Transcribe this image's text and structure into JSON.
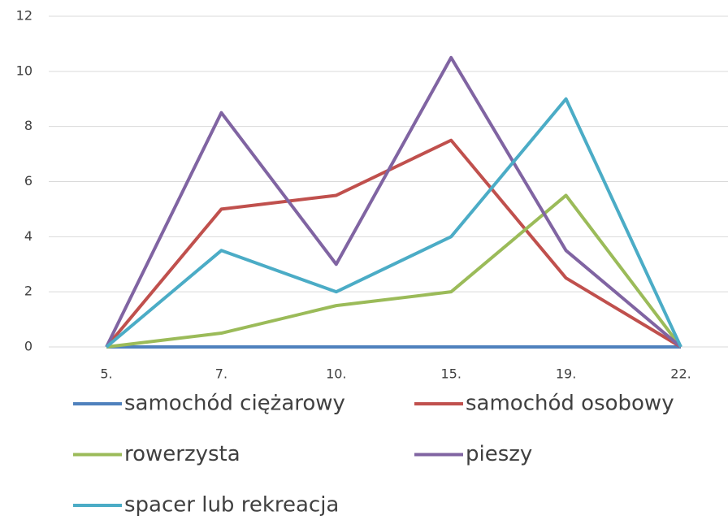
{
  "chart_data": {
    "type": "line",
    "categories": [
      "5.",
      "7.",
      "10.",
      "15.",
      "19.",
      "22."
    ],
    "series": [
      {
        "name": "samochód ciężarowy",
        "color": "#4f81bd",
        "values": [
          0,
          0,
          0,
          0,
          0,
          0
        ]
      },
      {
        "name": "samochód osobowy",
        "color": "#c0504d",
        "values": [
          0,
          5,
          5.5,
          7.5,
          2.5,
          0
        ]
      },
      {
        "name": "rowerzysta",
        "color": "#9bbb59",
        "values": [
          0,
          0.5,
          1.5,
          2,
          5.5,
          0
        ]
      },
      {
        "name": "pieszy",
        "color": "#8064a2",
        "values": [
          0,
          8.5,
          3,
          10.5,
          3.5,
          0
        ]
      },
      {
        "name": "spacer lub rekreacja",
        "color": "#4bacc6",
        "values": [
          0,
          3.5,
          2,
          4,
          9,
          0
        ]
      }
    ],
    "ylim": [
      0,
      12
    ],
    "yticks": [
      0,
      2,
      4,
      6,
      8,
      10,
      12
    ],
    "grid": true
  }
}
